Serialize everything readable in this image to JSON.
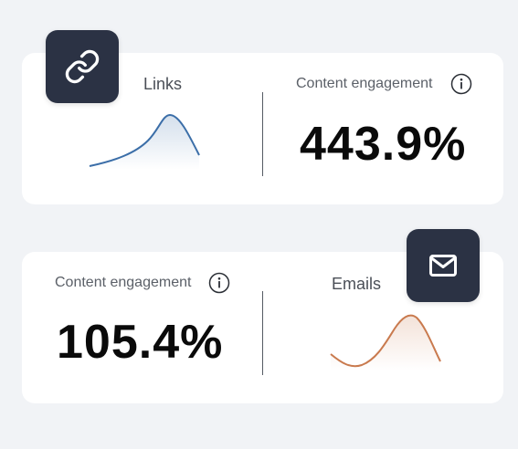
{
  "cards": [
    {
      "title": "Links",
      "icon": "link-icon",
      "spark_color": "#3b6ea8",
      "metric_label": "Content engagement",
      "metric_value": "443.9%"
    },
    {
      "title": "Emails",
      "icon": "mail-icon",
      "spark_color": "#c97a4e",
      "metric_label": "Content engagement",
      "metric_value": "105.4%"
    }
  ],
  "colors": {
    "background": "#f1f3f6",
    "card": "#ffffff",
    "badge": "#2b3244"
  }
}
